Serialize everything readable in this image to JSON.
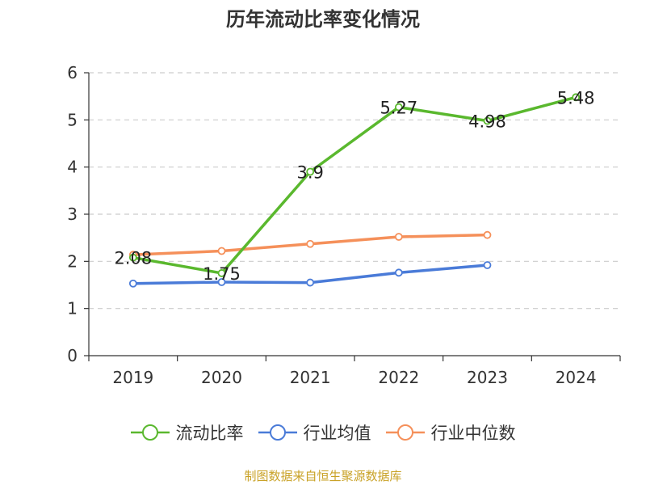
{
  "chart_data": {
    "type": "line",
    "title": "历年流动比率变化情况",
    "categories": [
      "2019",
      "2020",
      "2021",
      "2022",
      "2023",
      "2024"
    ],
    "ylim": [
      0,
      6
    ],
    "yticks": [
      0,
      1,
      2,
      3,
      4,
      5,
      6
    ],
    "grid": true,
    "legend_position": "bottom",
    "series": [
      {
        "name": "流动比率",
        "color": "#5ab82e",
        "values": [
          2.08,
          1.75,
          3.9,
          5.27,
          4.98,
          5.48
        ],
        "labels": [
          "2.08",
          "1.75",
          "3.9",
          "5.27",
          "4.98",
          "5.48"
        ]
      },
      {
        "name": "行业均值",
        "color": "#4a7bd8",
        "values": [
          1.53,
          1.56,
          1.55,
          1.76,
          1.92,
          null
        ]
      },
      {
        "name": "行业中位数",
        "color": "#f5905a",
        "values": [
          2.14,
          2.22,
          2.37,
          2.52,
          2.56,
          null
        ]
      }
    ]
  },
  "source_text": "制图数据来自恒生聚源数据库"
}
